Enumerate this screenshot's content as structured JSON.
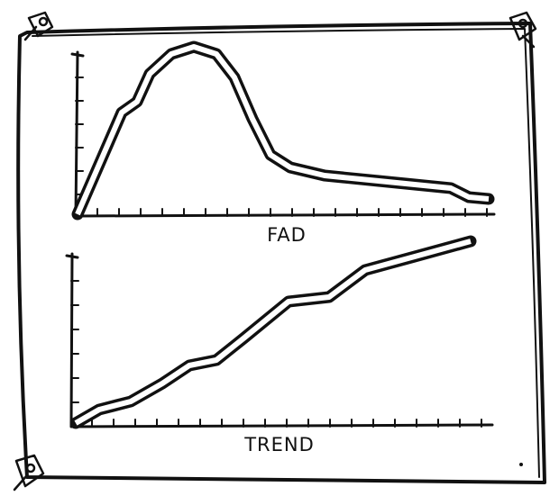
{
  "panels": [
    {
      "label": "FAD"
    },
    {
      "label": "TREND"
    }
  ]
}
